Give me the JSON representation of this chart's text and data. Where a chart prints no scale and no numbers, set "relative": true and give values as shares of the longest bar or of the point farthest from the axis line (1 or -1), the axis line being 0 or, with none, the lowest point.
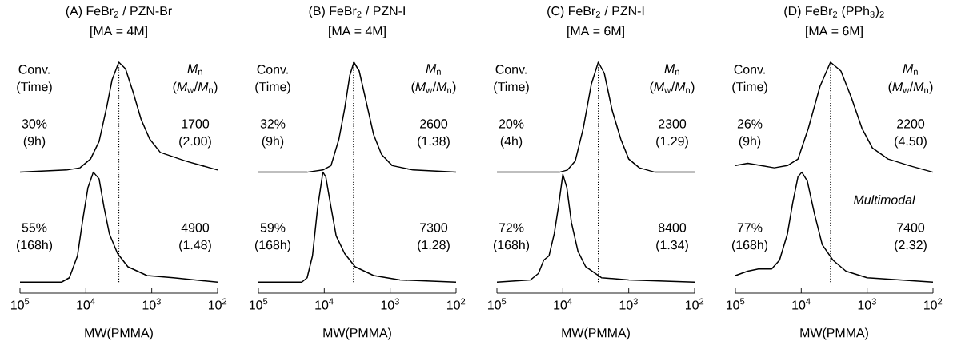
{
  "chart_data": [
    {
      "type": "line",
      "title": "(A) FeBr$_{2}$ / PZN-Br",
      "subtitle": "[MA = 4M]",
      "xlabel": "MW(PMMA)",
      "log": "x",
      "relative": true,
      "marker": "none",
      "line_style": "solid",
      "xlim": [
        100000,
        100
      ],
      "xticks": [
        {
          "value": 100000,
          "label": "10$^{5}$"
        },
        {
          "value": 10000,
          "label": "10$^{4}$"
        },
        {
          "value": 1000,
          "label": "10$^{3}$"
        },
        {
          "value": 100,
          "label": "10$^{2}$"
        }
      ],
      "series": [
        {
          "color": "#000000",
          "x": [
            100000,
            19500,
            12300,
            8500,
            6300,
            4800,
            4000,
            3160,
            2500,
            1900,
            1450,
            1070,
            740,
            470,
            300,
            100
          ],
          "values": [
            0.5,
            0.51,
            0.52,
            0.56,
            0.64,
            0.8,
            0.92,
            1.0,
            0.97,
            0.86,
            0.74,
            0.65,
            0.59,
            0.57,
            0.55,
            0.51
          ]
        },
        {
          "color": "#000000",
          "x": [
            100000,
            23400,
            17800,
            13400,
            11200,
            9300,
            7700,
            6300,
            5300,
            4400,
            3300,
            2300,
            1180,
            470,
            100
          ],
          "values": [
            0,
            0.0,
            0.02,
            0.12,
            0.28,
            0.43,
            0.5,
            0.47,
            0.34,
            0.22,
            0.13,
            0.07,
            0.03,
            0.02,
            0
          ]
        }
      ],
      "ref_lines": [
        {
          "axis": "x",
          "value": 3160,
          "line_style": "dotted"
        }
      ],
      "annotations": [
        "Conv.",
        "(Time)",
        "*M*$_{n}$",
        "(*M*$_{w}$/*M*$_{n}$)",
        "30%",
        "(9h)",
        "1700",
        "(2.00)",
        "55%",
        "(168h)",
        "4900",
        "(1.48)"
      ]
    },
    {
      "type": "line",
      "title": "(B) FeBr$_{2}$ / PZN-I",
      "subtitle": "[MA = 4M]",
      "xlabel": "MW(PMMA)",
      "log": "x",
      "relative": true,
      "marker": "none",
      "line_style": "solid",
      "xlim": [
        100000,
        100
      ],
      "xticks": [
        {
          "value": 100000,
          "label": "10$^{5}$"
        },
        {
          "value": 10000,
          "label": "10$^{4}$"
        },
        {
          "value": 1000,
          "label": "10$^{3}$"
        },
        {
          "value": 100,
          "label": "10$^{2}$"
        }
      ],
      "series": [
        {
          "color": "#000000",
          "x": [
            100000,
            18200,
            10500,
            7900,
            6000,
            4900,
            4100,
            3550,
            2950,
            2350,
            1780,
            1350,
            930,
            450,
            100
          ],
          "values": [
            0.5,
            0.5,
            0.51,
            0.53,
            0.65,
            0.79,
            0.94,
            1.0,
            0.96,
            0.83,
            0.67,
            0.58,
            0.53,
            0.51,
            0.5
          ]
        },
        {
          "color": "#000000",
          "x": [
            100000,
            21900,
            18200,
            15100,
            12600,
            10500,
            9500,
            7900,
            6600,
            4900,
            3400,
            1780,
            710,
            100
          ],
          "values": [
            0,
            0.0,
            0.02,
            0.12,
            0.34,
            0.5,
            0.48,
            0.34,
            0.21,
            0.13,
            0.07,
            0.03,
            0.01,
            0
          ]
        }
      ],
      "ref_lines": [
        {
          "axis": "x",
          "value": 3600,
          "line_style": "dotted"
        }
      ],
      "annotations": [
        "Conv.",
        "(Time)",
        "*M*$_{n}$",
        "(*M*$_{w}$/*M*$_{n}$)",
        "32%",
        "(9h)",
        "2600",
        "(1.38)",
        "59%",
        "(168h)",
        "7300",
        "(1.28)"
      ]
    },
    {
      "type": "line",
      "title": "(C) FeBr$_{2}$ / PZN-I",
      "subtitle": "[MA = 6M]",
      "xlabel": "MW(PMMA)",
      "log": "x",
      "relative": true,
      "marker": "none",
      "line_style": "solid",
      "xlim": [
        100000,
        100
      ],
      "xticks": [
        {
          "value": 100000,
          "label": "10$^{5}$"
        },
        {
          "value": 10000,
          "label": "10$^{4}$"
        },
        {
          "value": 1000,
          "label": "10$^{3}$"
        },
        {
          "value": 100,
          "label": "10$^{2}$"
        }
      ],
      "series": [
        {
          "color": "#000000",
          "x": [
            100000,
            11200,
            8500,
            6500,
            4900,
            3700,
            2900,
            2350,
            1780,
            1320,
            1000,
            690,
            400,
            100
          ],
          "values": [
            0.5,
            0.5,
            0.51,
            0.55,
            0.7,
            0.9,
            1.0,
            0.95,
            0.78,
            0.65,
            0.56,
            0.52,
            0.5,
            0.5
          ]
        },
        {
          "color": "#000000",
          "x": [
            100000,
            31000,
            23400,
            19500,
            16200,
            13500,
            11700,
            10000,
            8700,
            7400,
            5900,
            4500,
            2600,
            1000,
            100
          ],
          "values": [
            0,
            0.01,
            0.04,
            0.1,
            0.12,
            0.22,
            0.34,
            0.49,
            0.43,
            0.27,
            0.14,
            0.07,
            0.02,
            0.01,
            0
          ]
        }
      ],
      "ref_lines": [
        {
          "axis": "x",
          "value": 2900,
          "line_style": "dotted"
        }
      ],
      "annotations": [
        "Conv.",
        "(Time)",
        "*M*$_{n}$",
        "(*M*$_{w}$/*M*$_{n}$)",
        "20%",
        "(4h)",
        "2300",
        "(1.29)",
        "72%",
        "(168h)",
        "8400",
        "(1.34)"
      ]
    },
    {
      "type": "line",
      "title": "(D) FeBr$_{2}$ (PPh$_{3}$)$_{2}$",
      "subtitle": "[MA = 6M]",
      "xlabel": "MW(PMMA)",
      "log": "x",
      "relative": true,
      "marker": "none",
      "line_style": "solid",
      "xlim": [
        100000,
        100
      ],
      "xticks": [
        {
          "value": 100000,
          "label": "10$^{5}$"
        },
        {
          "value": 10000,
          "label": "10$^{4}$"
        },
        {
          "value": 1000,
          "label": "10$^{3}$"
        },
        {
          "value": 100,
          "label": "10$^{2}$"
        }
      ],
      "series": [
        {
          "color": "#000000",
          "x": [
            100000,
            65000,
            41000,
            25700,
            16200,
            11200,
            7800,
            5200,
            3600,
            2500,
            1740,
            1200,
            830,
            480,
            230,
            100
          ],
          "values": [
            0.53,
            0.54,
            0.53,
            0.52,
            0.53,
            0.56,
            0.7,
            0.89,
            1.0,
            0.96,
            0.84,
            0.7,
            0.61,
            0.56,
            0.53,
            0.5
          ]
        },
        {
          "color": "#000000",
          "x": [
            100000,
            65000,
            44700,
            28200,
            21400,
            16200,
            13500,
            11200,
            9800,
            8100,
            6300,
            4800,
            3300,
            2100,
            1000,
            100
          ],
          "values": [
            0.03,
            0.05,
            0.06,
            0.06,
            0.1,
            0.22,
            0.36,
            0.48,
            0.5,
            0.46,
            0.31,
            0.17,
            0.1,
            0.05,
            0.02,
            0
          ]
        }
      ],
      "ref_lines": [
        {
          "axis": "x",
          "value": 3600,
          "line_style": "dotted"
        }
      ],
      "annotations": [
        "Conv.",
        "(Time)",
        "*M*$_{n}$",
        "(*M*$_{w}$/*M*$_{n}$)",
        "26%",
        "(9h)",
        "2200",
        "(4.50)",
        "77%",
        "(168h)",
        "7400",
        "(2.32)",
        "Multimodal"
      ]
    }
  ]
}
